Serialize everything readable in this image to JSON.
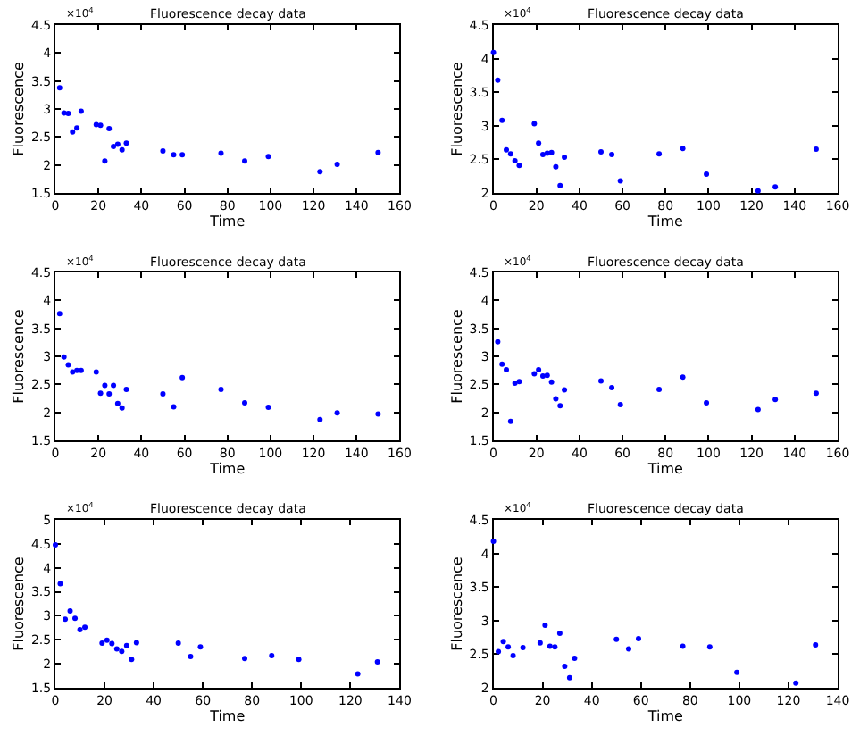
{
  "chart_data": [
    {
      "type": "scatter",
      "title": "Fluorescence decay data",
      "xlabel": "Time",
      "ylabel": "Fluorescence",
      "annotations": [
        "×10$^{4}$"
      ],
      "color": "#0000ff",
      "marker": "circle",
      "x": [
        2,
        4,
        6,
        8,
        10,
        12,
        19,
        21,
        23,
        25,
        27,
        29,
        31,
        33,
        50,
        55,
        59,
        77,
        88,
        99,
        123,
        131,
        150
      ],
      "values": [
        3.38,
        2.93,
        2.92,
        2.59,
        2.66,
        2.96,
        2.72,
        2.71,
        2.07,
        2.65,
        2.33,
        2.37,
        2.27,
        2.39,
        2.25,
        2.18,
        2.18,
        2.21,
        2.07,
        2.15,
        1.88,
        2.01,
        2.22
      ],
      "xlim": [
        0,
        160
      ],
      "xticks": [
        0,
        20,
        40,
        60,
        80,
        100,
        120,
        140,
        160
      ],
      "ylim": [
        1.5,
        4.5
      ],
      "yticks": [
        1.5,
        2,
        2.5,
        3,
        3.5,
        4,
        4.5
      ]
    },
    {
      "type": "scatter",
      "title": "Fluorescence decay data",
      "xlabel": "Time",
      "ylabel": "Fluorescence",
      "annotations": [
        "×10$^{4}$"
      ],
      "color": "#0000ff",
      "marker": "circle",
      "x": [
        0,
        2,
        4,
        6,
        8,
        10,
        12,
        19,
        21,
        23,
        25,
        27,
        29,
        31,
        33,
        50,
        55,
        59,
        77,
        88,
        99,
        123,
        131,
        150
      ],
      "values": [
        4.09,
        3.68,
        3.08,
        2.64,
        2.58,
        2.48,
        2.41,
        3.03,
        2.74,
        2.57,
        2.59,
        2.6,
        2.39,
        2.11,
        2.53,
        2.61,
        2.57,
        2.18,
        2.58,
        2.66,
        2.28,
        2.03,
        2.09,
        2.65
      ],
      "xlim": [
        0,
        160
      ],
      "xticks": [
        0,
        20,
        40,
        60,
        80,
        100,
        120,
        140,
        160
      ],
      "ylim": [
        2,
        4.5
      ],
      "yticks": [
        2,
        2.5,
        3,
        3.5,
        4,
        4.5
      ]
    },
    {
      "type": "scatter",
      "title": "Fluorescence decay data",
      "xlabel": "Time",
      "ylabel": "Fluorescence",
      "annotations": [
        "×10$^{4}$"
      ],
      "color": "#0000ff",
      "marker": "circle",
      "x": [
        2,
        4,
        6,
        8,
        10,
        12,
        19,
        21,
        23,
        25,
        27,
        29,
        31,
        33,
        50,
        55,
        59,
        77,
        88,
        99,
        123,
        131,
        150
      ],
      "values": [
        3.76,
        2.99,
        2.85,
        2.72,
        2.75,
        2.75,
        2.72,
        2.34,
        2.48,
        2.33,
        2.48,
        2.16,
        2.08,
        2.41,
        2.33,
        2.1,
        2.62,
        2.41,
        2.17,
        2.09,
        1.87,
        1.99,
        1.97
      ],
      "xlim": [
        0,
        160
      ],
      "xticks": [
        0,
        20,
        40,
        60,
        80,
        100,
        120,
        140,
        160
      ],
      "ylim": [
        1.5,
        4.5
      ],
      "yticks": [
        1.5,
        2,
        2.5,
        3,
        3.5,
        4,
        4.5
      ]
    },
    {
      "type": "scatter",
      "title": "Fluorescence decay data",
      "xlabel": "Time",
      "ylabel": "Fluorescence",
      "annotations": [
        "×10$^{4}$"
      ],
      "color": "#0000ff",
      "marker": "circle",
      "x": [
        2,
        4,
        6,
        8,
        10,
        12,
        19,
        21,
        23,
        25,
        27,
        29,
        31,
        33,
        50,
        55,
        59,
        77,
        88,
        99,
        123,
        131,
        150
      ],
      "values": [
        3.26,
        2.86,
        2.76,
        1.84,
        2.52,
        2.55,
        2.69,
        2.76,
        2.65,
        2.66,
        2.54,
        2.24,
        2.12,
        2.4,
        2.56,
        2.44,
        2.14,
        2.41,
        2.63,
        2.17,
        2.05,
        2.23,
        2.34
      ],
      "xlim": [
        0,
        160
      ],
      "xticks": [
        0,
        20,
        40,
        60,
        80,
        100,
        120,
        140,
        160
      ],
      "ylim": [
        1.5,
        4.5
      ],
      "yticks": [
        1.5,
        2,
        2.5,
        3,
        3.5,
        4,
        4.5
      ]
    },
    {
      "type": "scatter",
      "title": "Fluorescence decay data",
      "xlabel": "Time",
      "ylabel": "Fluorescence",
      "annotations": [
        "×10$^{4}$"
      ],
      "color": "#0000ff",
      "marker": "circle",
      "x": [
        0,
        2,
        4,
        6,
        8,
        10,
        12,
        19,
        21,
        23,
        25,
        27,
        29,
        31,
        33,
        50,
        55,
        59,
        77,
        88,
        99,
        123,
        131
      ],
      "values": [
        4.48,
        3.67,
        2.93,
        3.1,
        2.95,
        2.71,
        2.76,
        2.43,
        2.49,
        2.42,
        2.31,
        2.26,
        2.38,
        2.09,
        2.44,
        2.43,
        2.15,
        2.35,
        2.11,
        2.17,
        2.09,
        1.79,
        2.04
      ],
      "xlim": [
        0,
        140
      ],
      "xticks": [
        0,
        20,
        40,
        60,
        80,
        100,
        120,
        140
      ],
      "ylim": [
        1.5,
        5
      ],
      "yticks": [
        1.5,
        2,
        2.5,
        3,
        3.5,
        4,
        4.5,
        5
      ]
    },
    {
      "type": "scatter",
      "title": "Fluorescence decay data",
      "xlabel": "Time",
      "ylabel": "Fluorescence",
      "annotations": [
        "×10$^{4}$"
      ],
      "color": "#0000ff",
      "marker": "circle",
      "x": [
        0,
        2,
        4,
        6,
        8,
        12,
        19,
        21,
        23,
        25,
        27,
        29,
        31,
        33,
        50,
        55,
        59,
        77,
        88,
        99,
        123,
        131
      ],
      "values": [
        4.18,
        2.54,
        2.69,
        2.61,
        2.48,
        2.6,
        2.67,
        2.93,
        2.62,
        2.61,
        2.81,
        2.32,
        2.15,
        2.44,
        2.72,
        2.58,
        2.73,
        2.62,
        2.61,
        2.23,
        2.07,
        2.64
      ],
      "xlim": [
        0,
        140
      ],
      "xticks": [
        0,
        20,
        40,
        60,
        80,
        100,
        120,
        140
      ],
      "ylim": [
        2,
        4.5
      ],
      "yticks": [
        2,
        2.5,
        3,
        3.5,
        4,
        4.5
      ]
    }
  ]
}
